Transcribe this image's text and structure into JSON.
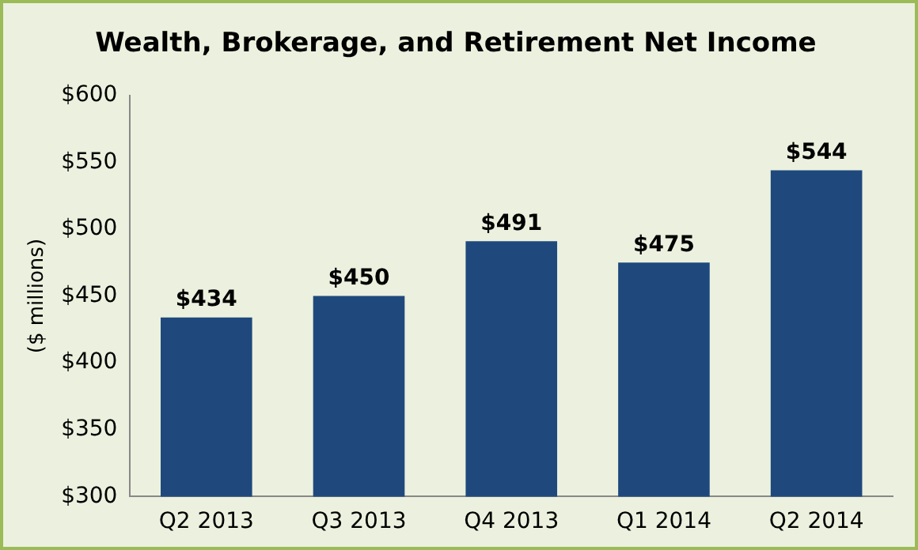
{
  "chart_data": {
    "type": "bar",
    "title": "Wealth, Brokerage, and Retirement Net Income",
    "ylabel": "($ millions)",
    "categories": [
      "Q2 2013",
      "Q3 2013",
      "Q4 2013",
      "Q1 2014",
      "Q2 2014"
    ],
    "values": [
      434,
      450,
      491,
      475,
      544
    ],
    "value_labels": [
      "$434",
      "$450",
      "$491",
      "$475",
      "$544"
    ],
    "color": "#1f497d",
    "ylim": [
      300,
      600
    ],
    "yticks": [
      {
        "value": 300,
        "label": "$300"
      },
      {
        "value": 350,
        "label": "$350"
      },
      {
        "value": 400,
        "label": "$400"
      },
      {
        "value": 450,
        "label": "$450"
      },
      {
        "value": 500,
        "label": "$500"
      },
      {
        "value": 550,
        "label": "$550"
      },
      {
        "value": 600,
        "label": "$600"
      }
    ],
    "grid": false,
    "legend": false
  }
}
